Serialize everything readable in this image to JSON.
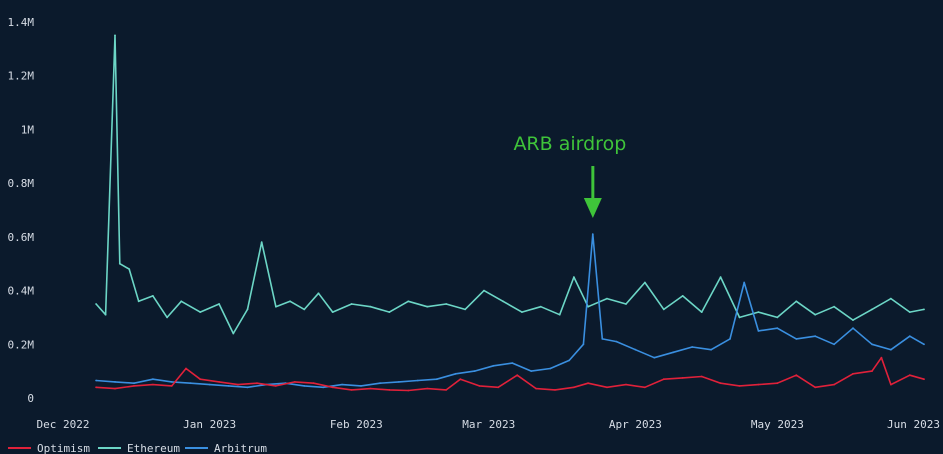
{
  "chart_data": {
    "type": "line",
    "title": "",
    "xlabel": "",
    "ylabel": "",
    "x_range": [
      "2022-12-01",
      "2023-06-01"
    ],
    "ylim": [
      0,
      1400000
    ],
    "y_ticks": [
      {
        "value": 0,
        "label": "0"
      },
      {
        "value": 200000,
        "label": "0.2M"
      },
      {
        "value": 400000,
        "label": "0.4M"
      },
      {
        "value": 600000,
        "label": "0.6M"
      },
      {
        "value": 800000,
        "label": "0.8M"
      },
      {
        "value": 1000000,
        "label": "1M"
      },
      {
        "value": 1200000,
        "label": "1.2M"
      },
      {
        "value": 1400000,
        "label": "1.4M"
      }
    ],
    "x_ticks": [
      {
        "date": "2022-12-01",
        "label": "Dec 2022"
      },
      {
        "date": "2023-01-01",
        "label": "Jan 2023"
      },
      {
        "date": "2023-02-01",
        "label": "Feb 2023"
      },
      {
        "date": "2023-03-01",
        "label": "Mar 2023"
      },
      {
        "date": "2023-04-01",
        "label": "Apr 2023"
      },
      {
        "date": "2023-05-01",
        "label": "May 2023"
      },
      {
        "date": "2023-06-01",
        "label": "Jun 2023"
      }
    ],
    "grid": false,
    "legend_position": "bottom-left",
    "series": [
      {
        "name": "Optimism",
        "color": "#e0213a",
        "points": [
          [
            "2022-12-08",
            40000
          ],
          [
            "2022-12-12",
            35000
          ],
          [
            "2022-12-16",
            45000
          ],
          [
            "2022-12-20",
            50000
          ],
          [
            "2022-12-24",
            45000
          ],
          [
            "2022-12-27",
            110000
          ],
          [
            "2022-12-30",
            70000
          ],
          [
            "2023-01-03",
            60000
          ],
          [
            "2023-01-07",
            50000
          ],
          [
            "2023-01-11",
            55000
          ],
          [
            "2023-01-15",
            45000
          ],
          [
            "2023-01-19",
            60000
          ],
          [
            "2023-01-23",
            55000
          ],
          [
            "2023-01-27",
            40000
          ],
          [
            "2023-01-31",
            30000
          ],
          [
            "2023-02-04",
            35000
          ],
          [
            "2023-02-08",
            30000
          ],
          [
            "2023-02-12",
            28000
          ],
          [
            "2023-02-16",
            35000
          ],
          [
            "2023-02-20",
            30000
          ],
          [
            "2023-02-23",
            70000
          ],
          [
            "2023-02-27",
            45000
          ],
          [
            "2023-03-03",
            40000
          ],
          [
            "2023-03-07",
            85000
          ],
          [
            "2023-03-11",
            35000
          ],
          [
            "2023-03-15",
            30000
          ],
          [
            "2023-03-19",
            40000
          ],
          [
            "2023-03-22",
            55000
          ],
          [
            "2023-03-26",
            40000
          ],
          [
            "2023-03-30",
            50000
          ],
          [
            "2023-04-03",
            40000
          ],
          [
            "2023-04-07",
            70000
          ],
          [
            "2023-04-11",
            75000
          ],
          [
            "2023-04-15",
            80000
          ],
          [
            "2023-04-19",
            55000
          ],
          [
            "2023-04-23",
            45000
          ],
          [
            "2023-04-27",
            50000
          ],
          [
            "2023-05-01",
            55000
          ],
          [
            "2023-05-05",
            85000
          ],
          [
            "2023-05-09",
            40000
          ],
          [
            "2023-05-13",
            50000
          ],
          [
            "2023-05-17",
            90000
          ],
          [
            "2023-05-21",
            100000
          ],
          [
            "2023-05-23",
            150000
          ],
          [
            "2023-05-25",
            50000
          ],
          [
            "2023-05-29",
            85000
          ],
          [
            "2023-06-01",
            70000
          ]
        ]
      },
      {
        "name": "Ethereum",
        "color": "#6cd6c6",
        "points": [
          [
            "2022-12-08",
            350000
          ],
          [
            "2022-12-10",
            310000
          ],
          [
            "2022-12-12",
            1350000
          ],
          [
            "2022-12-13",
            500000
          ],
          [
            "2022-12-15",
            480000
          ],
          [
            "2022-12-17",
            360000
          ],
          [
            "2022-12-20",
            380000
          ],
          [
            "2022-12-23",
            300000
          ],
          [
            "2022-12-26",
            360000
          ],
          [
            "2022-12-30",
            320000
          ],
          [
            "2023-01-03",
            350000
          ],
          [
            "2023-01-06",
            240000
          ],
          [
            "2023-01-09",
            330000
          ],
          [
            "2023-01-12",
            580000
          ],
          [
            "2023-01-15",
            340000
          ],
          [
            "2023-01-18",
            360000
          ],
          [
            "2023-01-21",
            330000
          ],
          [
            "2023-01-24",
            390000
          ],
          [
            "2023-01-27",
            320000
          ],
          [
            "2023-01-31",
            350000
          ],
          [
            "2023-02-04",
            340000
          ],
          [
            "2023-02-08",
            320000
          ],
          [
            "2023-02-12",
            360000
          ],
          [
            "2023-02-16",
            340000
          ],
          [
            "2023-02-20",
            350000
          ],
          [
            "2023-02-24",
            330000
          ],
          [
            "2023-02-28",
            400000
          ],
          [
            "2023-03-04",
            360000
          ],
          [
            "2023-03-08",
            320000
          ],
          [
            "2023-03-12",
            340000
          ],
          [
            "2023-03-16",
            310000
          ],
          [
            "2023-03-19",
            450000
          ],
          [
            "2023-03-22",
            340000
          ],
          [
            "2023-03-26",
            370000
          ],
          [
            "2023-03-30",
            350000
          ],
          [
            "2023-04-03",
            430000
          ],
          [
            "2023-04-07",
            330000
          ],
          [
            "2023-04-11",
            380000
          ],
          [
            "2023-04-15",
            320000
          ],
          [
            "2023-04-19",
            450000
          ],
          [
            "2023-04-23",
            300000
          ],
          [
            "2023-04-27",
            320000
          ],
          [
            "2023-05-01",
            300000
          ],
          [
            "2023-05-05",
            360000
          ],
          [
            "2023-05-09",
            310000
          ],
          [
            "2023-05-13",
            340000
          ],
          [
            "2023-05-17",
            290000
          ],
          [
            "2023-05-21",
            330000
          ],
          [
            "2023-05-25",
            370000
          ],
          [
            "2023-05-29",
            320000
          ],
          [
            "2023-06-01",
            330000
          ]
        ]
      },
      {
        "name": "Arbitrum",
        "color": "#3a8fe0",
        "points": [
          [
            "2022-12-08",
            65000
          ],
          [
            "2022-12-12",
            60000
          ],
          [
            "2022-12-16",
            55000
          ],
          [
            "2022-12-20",
            70000
          ],
          [
            "2022-12-24",
            60000
          ],
          [
            "2022-12-28",
            55000
          ],
          [
            "2023-01-01",
            50000
          ],
          [
            "2023-01-05",
            45000
          ],
          [
            "2023-01-09",
            40000
          ],
          [
            "2023-01-13",
            50000
          ],
          [
            "2023-01-17",
            55000
          ],
          [
            "2023-01-21",
            45000
          ],
          [
            "2023-01-25",
            40000
          ],
          [
            "2023-01-29",
            50000
          ],
          [
            "2023-02-02",
            45000
          ],
          [
            "2023-02-06",
            55000
          ],
          [
            "2023-02-10",
            60000
          ],
          [
            "2023-02-14",
            65000
          ],
          [
            "2023-02-18",
            70000
          ],
          [
            "2023-02-22",
            90000
          ],
          [
            "2023-02-26",
            100000
          ],
          [
            "2023-03-02",
            120000
          ],
          [
            "2023-03-06",
            130000
          ],
          [
            "2023-03-10",
            100000
          ],
          [
            "2023-03-14",
            110000
          ],
          [
            "2023-03-18",
            140000
          ],
          [
            "2023-03-21",
            200000
          ],
          [
            "2023-03-23",
            610000
          ],
          [
            "2023-03-25",
            220000
          ],
          [
            "2023-03-28",
            210000
          ],
          [
            "2023-04-01",
            180000
          ],
          [
            "2023-04-05",
            150000
          ],
          [
            "2023-04-09",
            170000
          ],
          [
            "2023-04-13",
            190000
          ],
          [
            "2023-04-17",
            180000
          ],
          [
            "2023-04-21",
            220000
          ],
          [
            "2023-04-24",
            430000
          ],
          [
            "2023-04-27",
            250000
          ],
          [
            "2023-05-01",
            260000
          ],
          [
            "2023-05-05",
            220000
          ],
          [
            "2023-05-09",
            230000
          ],
          [
            "2023-05-13",
            200000
          ],
          [
            "2023-05-17",
            260000
          ],
          [
            "2023-05-21",
            200000
          ],
          [
            "2023-05-25",
            180000
          ],
          [
            "2023-05-29",
            230000
          ],
          [
            "2023-06-01",
            200000
          ]
        ]
      }
    ],
    "annotations": [
      {
        "text": "ARB airdrop",
        "color": "#3fc43a",
        "date": "2023-03-23",
        "value": 610000
      }
    ]
  }
}
